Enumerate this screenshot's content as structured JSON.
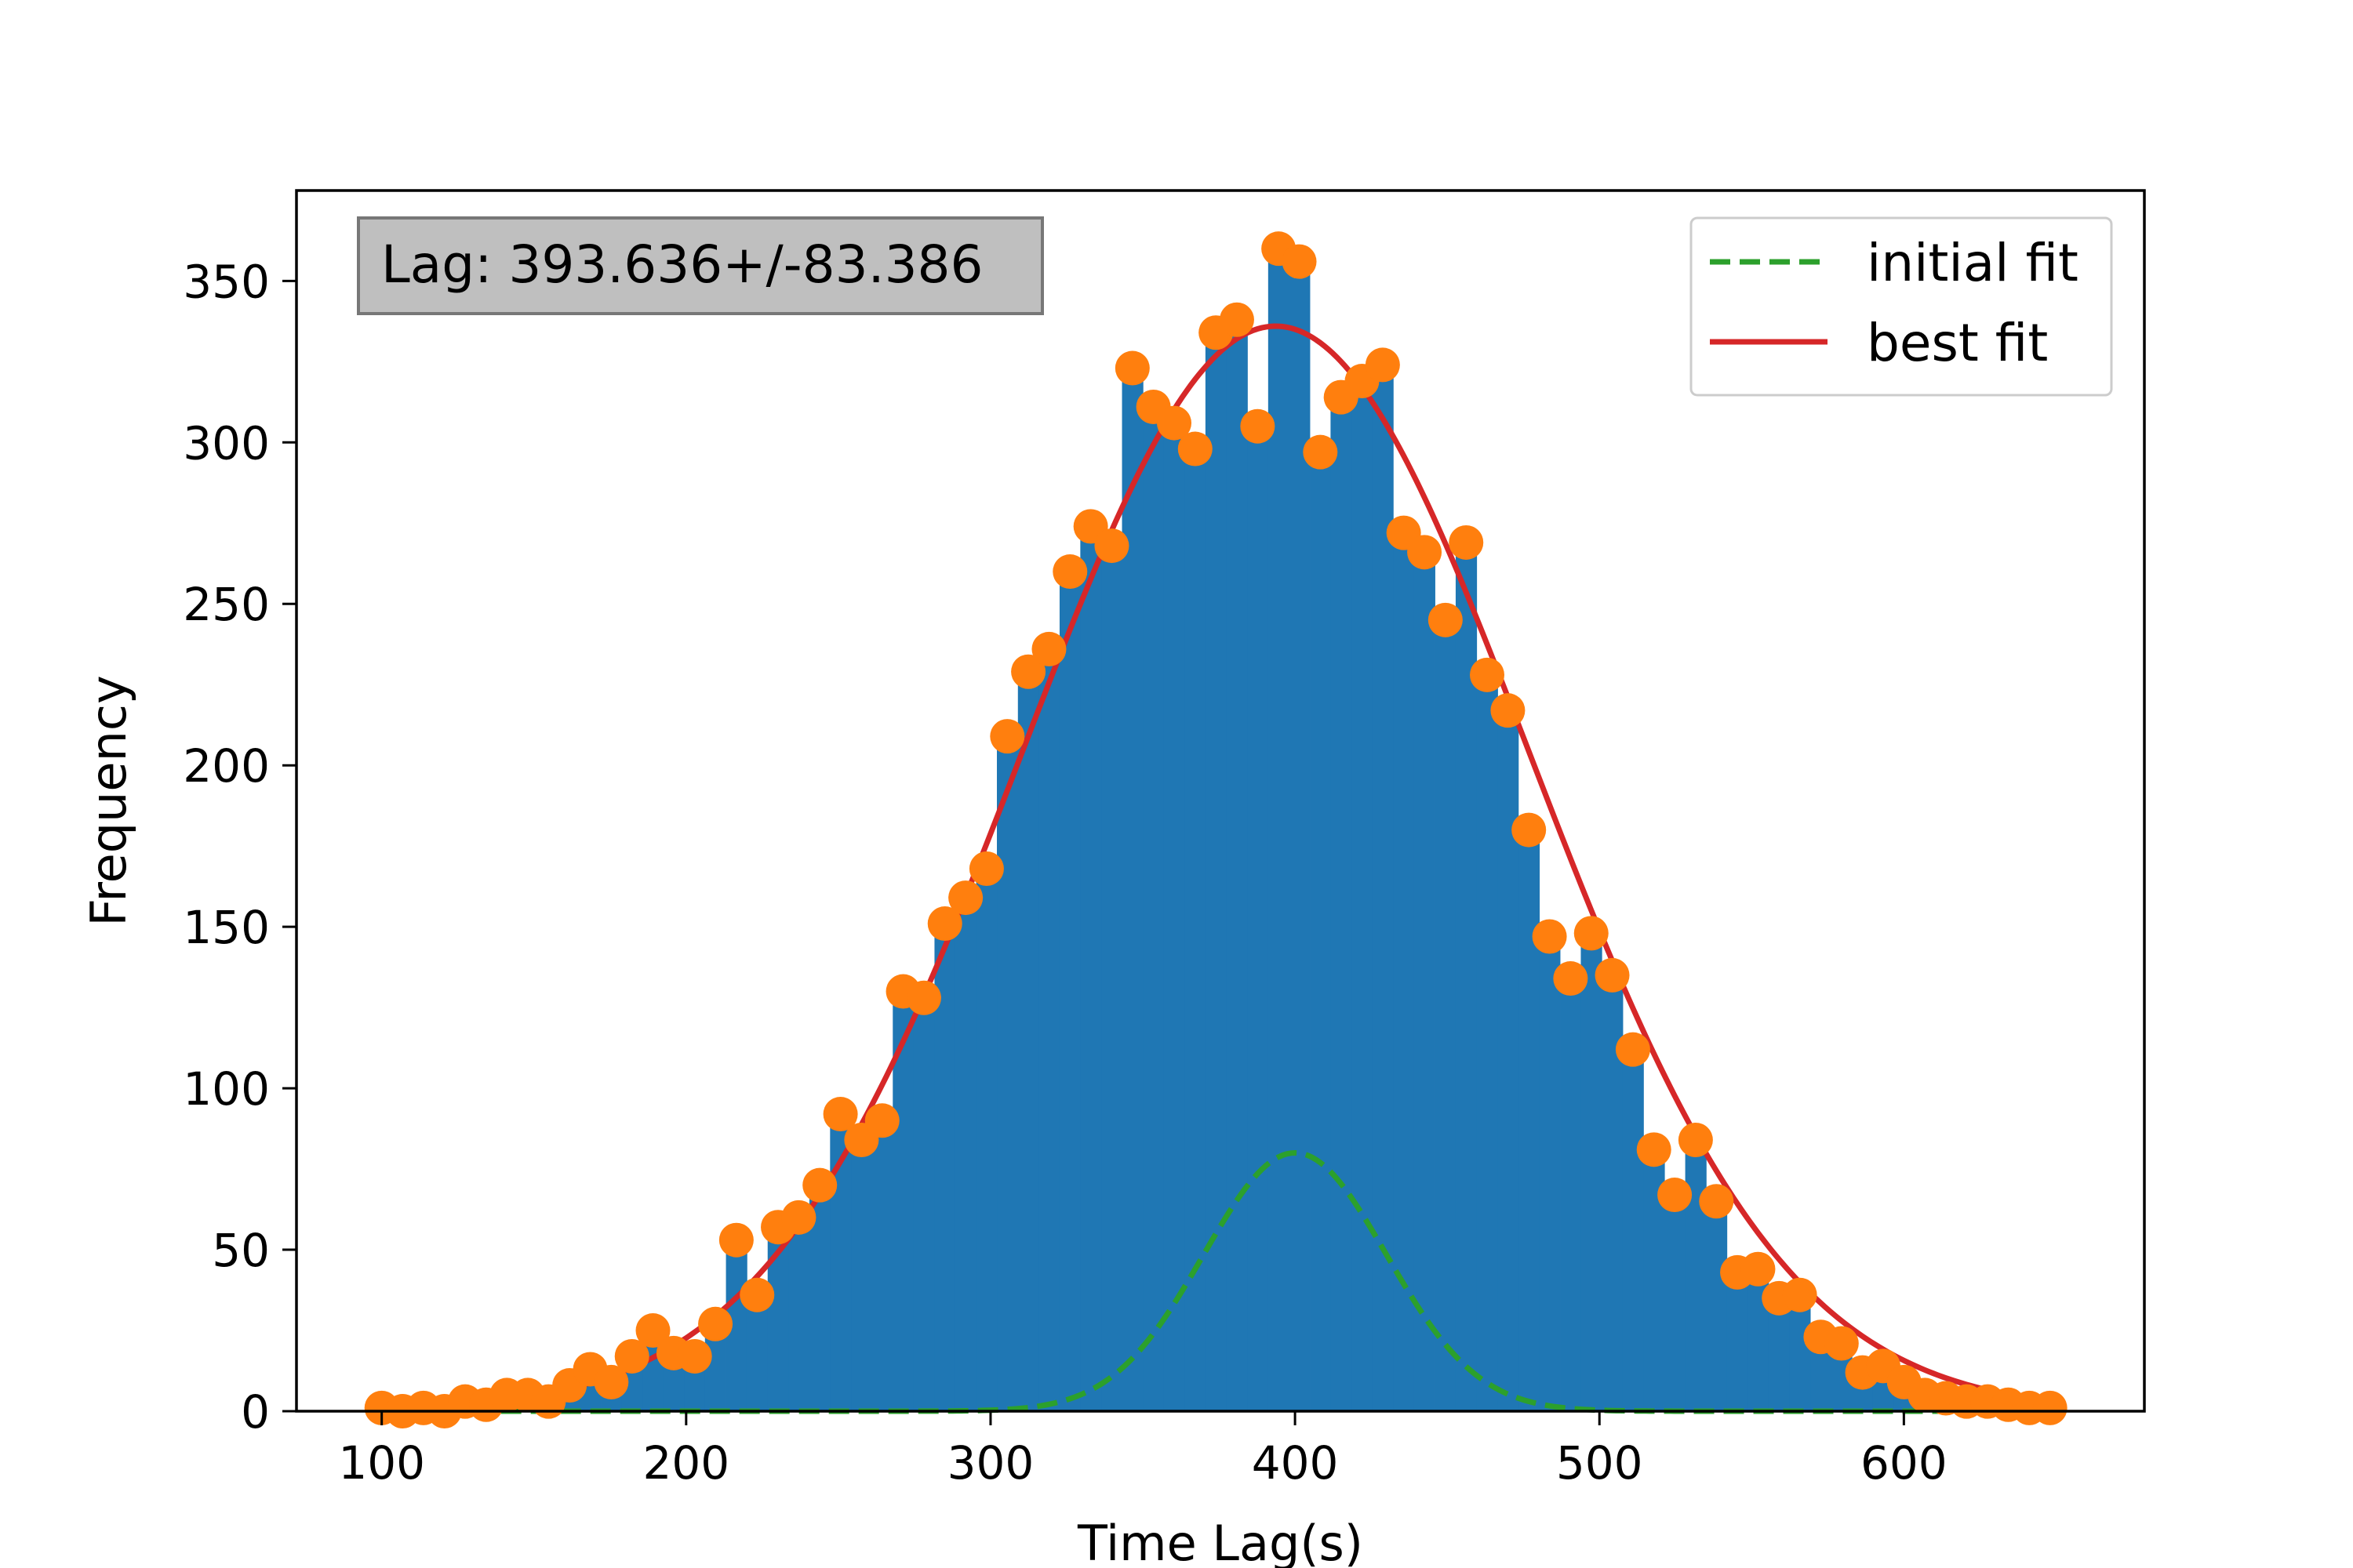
{
  "chart_data": {
    "type": "bar",
    "title": "",
    "xlabel": "Time Lag(s)",
    "ylabel": "Frequency",
    "xlim": [
      72,
      679
    ],
    "ylim": [
      0,
      378
    ],
    "xticks": [
      100,
      200,
      300,
      400,
      500,
      600
    ],
    "yticks": [
      0,
      50,
      100,
      150,
      200,
      250,
      300,
      350
    ],
    "annotation": "Lag: 393.636+/-83.386",
    "legend": {
      "position": "top-right",
      "entries": [
        "initial fit",
        "best fit"
      ]
    },
    "colors": {
      "bars": "#1f77b4",
      "points": "#ff7f0e",
      "initial_fit": "#2ca02c",
      "best_fit": "#d62728"
    },
    "histogram": {
      "bin_width": 6.85,
      "x": [
        100,
        106.9,
        113.7,
        120.6,
        127.4,
        134.3,
        141.1,
        148.0,
        154.8,
        161.7,
        168.5,
        175.4,
        182.2,
        189.1,
        195.9,
        202.8,
        209.6,
        216.5,
        223.3,
        230.2,
        237.0,
        243.9,
        250.7,
        257.6,
        264.4,
        271.3,
        278.1,
        285.0,
        291.8,
        298.7,
        305.5,
        312.4,
        319.2,
        326.1,
        332.9,
        339.8,
        346.6,
        353.5,
        360.3,
        367.2,
        374.0,
        380.9,
        387.7,
        394.6,
        401.4,
        408.3,
        415.1,
        422.0,
        428.8,
        435.7,
        442.5,
        449.4,
        456.2,
        463.1,
        469.9,
        476.8,
        483.6,
        490.5,
        497.3,
        504.2,
        511.0,
        517.9,
        524.7,
        531.6,
        538.4,
        545.3,
        552.1,
        559.0,
        565.8,
        572.7,
        579.5,
        586.4,
        593.2,
        600.1,
        606.9,
        613.8,
        620.6,
        627.5,
        634.3,
        641.2,
        648.0
      ],
      "values": [
        1,
        0,
        1,
        0,
        3,
        2,
        5,
        5,
        3,
        8,
        13,
        9,
        17,
        25,
        18,
        17,
        27,
        53,
        36,
        57,
        60,
        70,
        92,
        84,
        90,
        130,
        128,
        151,
        159,
        168,
        209,
        229,
        236,
        260,
        274,
        268,
        323,
        311,
        306,
        298,
        334,
        338,
        305,
        360,
        356,
        297,
        314,
        319,
        324,
        272,
        266,
        245,
        269,
        228,
        217,
        180,
        147,
        134,
        148,
        135,
        112,
        81,
        67,
        84,
        65,
        43,
        44,
        35,
        36,
        23,
        21,
        12,
        14,
        9,
        5,
        4,
        3,
        3,
        2,
        1,
        1
      ]
    },
    "series": [
      {
        "name": "initial fit",
        "model": "gaussian",
        "amplitude": 80,
        "center": 400,
        "sigma": 30
      },
      {
        "name": "best fit",
        "model": "gaussian",
        "amplitude": 336,
        "center": 393.636,
        "sigma": 83.386
      }
    ]
  }
}
